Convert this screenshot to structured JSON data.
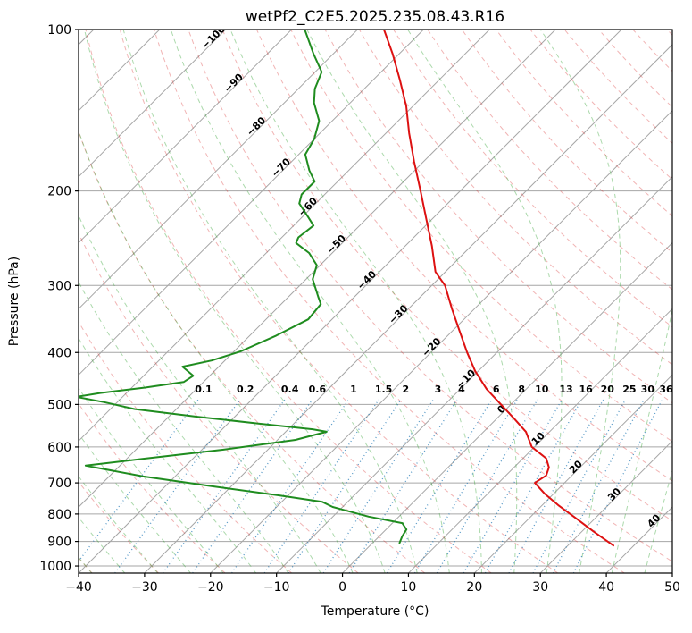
{
  "title": "wetPf2_C2E5.2025.235.08.43.R16",
  "axes": {
    "x_label": "Temperature (°C)",
    "y_label": "Pressure (hPa)"
  },
  "chart_data": {
    "type": "line",
    "subtype": "skew-t-log-p",
    "title": "wetPf2_C2E5.2025.235.08.43.R16",
    "xlabel": "Temperature (°C)",
    "ylabel": "Pressure (hPa)",
    "xlim": [
      -40,
      50
    ],
    "plim": [
      100,
      1031
    ],
    "x_ticks": [
      -40,
      -30,
      -20,
      -10,
      0,
      10,
      20,
      30,
      40,
      50
    ],
    "y_ticks": [
      100,
      200,
      300,
      400,
      500,
      600,
      700,
      800,
      900,
      1000
    ],
    "skew_deg": 45,
    "grid": true,
    "isotherms": {
      "start": -160,
      "end": 50,
      "step": 10,
      "labels": [
        -100,
        -90,
        -80,
        -70,
        -60,
        -50,
        -40,
        -30,
        -20,
        -10,
        0,
        10,
        20,
        30,
        40
      ],
      "label_theta_k": 330
    },
    "dry_adiabats_c": {
      "start": -40,
      "end": 200,
      "step": 10
    },
    "moist_adiabats_c": {
      "start": -40,
      "end": 45,
      "step": 5
    },
    "mixing_ratios": {
      "values_g_kg": [
        0.1,
        0.2,
        0.4,
        0.6,
        1,
        1.5,
        2,
        3,
        4,
        6,
        8,
        10,
        13,
        16,
        20,
        25,
        30,
        36
      ],
      "label_pressure_hpa": 475,
      "top_pressure_hpa": 490
    },
    "series": [
      {
        "name": "temperature",
        "color": "#dd1111",
        "points_T_p": [
          [
            -76,
            100
          ],
          [
            -71,
            111
          ],
          [
            -66,
            124
          ],
          [
            -61,
            139
          ],
          [
            -56.5,
            156
          ],
          [
            -51.5,
            176
          ],
          [
            -46,
            200
          ],
          [
            -41,
            225
          ],
          [
            -36,
            253
          ],
          [
            -31.5,
            283
          ],
          [
            -28,
            300
          ],
          [
            -23.5,
            331
          ],
          [
            -19,
            364
          ],
          [
            -14.5,
            400
          ],
          [
            -10.5,
            433
          ],
          [
            -6,
            468
          ],
          [
            -1.5,
            500
          ],
          [
            2.6,
            531
          ],
          [
            6.4,
            562
          ],
          [
            9.6,
            600
          ],
          [
            13.5,
            630
          ],
          [
            15.3,
            655
          ],
          [
            16.1,
            678
          ],
          [
            15.5,
            700
          ],
          [
            18.6,
            733
          ],
          [
            22.4,
            770
          ],
          [
            27.1,
            815
          ],
          [
            31.8,
            863
          ],
          [
            36.9,
            916
          ]
        ]
      },
      {
        "name": "dewpoint",
        "color": "#1f8c1f",
        "points_T_p": [
          [
            -88,
            100
          ],
          [
            -83,
            111
          ],
          [
            -79,
            120
          ],
          [
            -77.5,
            129
          ],
          [
            -75.5,
            137
          ],
          [
            -72,
            148
          ],
          [
            -70,
            160
          ],
          [
            -69,
            171
          ],
          [
            -66,
            183
          ],
          [
            -63.5,
            192
          ],
          [
            -63.5,
            203
          ],
          [
            -62.5,
            211
          ],
          [
            -59,
            224
          ],
          [
            -57,
            232
          ],
          [
            -57.5,
            244
          ],
          [
            -57,
            250
          ],
          [
            -53.5,
            261
          ],
          [
            -50.5,
            275
          ],
          [
            -49,
            292
          ],
          [
            -45.5,
            315
          ],
          [
            -44,
            325
          ],
          [
            -43.6,
            347
          ],
          [
            -46,
            372
          ],
          [
            -49,
            398
          ],
          [
            -52,
            414
          ],
          [
            -55.5,
            425
          ],
          [
            -52.5,
            442
          ],
          [
            -53,
            454
          ],
          [
            -58,
            465
          ],
          [
            -64,
            476
          ],
          [
            -67,
            484
          ],
          [
            -62,
            495
          ],
          [
            -56.3,
            510
          ],
          [
            -45.7,
            527
          ],
          [
            -35.2,
            543
          ],
          [
            -26.3,
            556
          ],
          [
            -23.8,
            562
          ],
          [
            -27.3,
            582
          ],
          [
            -36.7,
            607
          ],
          [
            -47.5,
            631
          ],
          [
            -55.2,
            650
          ],
          [
            -44.8,
            681
          ],
          [
            -32.5,
            711
          ],
          [
            -21.6,
            738
          ],
          [
            -13.9,
            759
          ],
          [
            -11.5,
            776
          ],
          [
            -4.6,
            809
          ],
          [
            1.5,
            832
          ],
          [
            3.1,
            855
          ],
          [
            3.5,
            881
          ],
          [
            4.1,
            906
          ]
        ]
      }
    ],
    "style_colors": {
      "isotherm": "#a6a6a6",
      "grid": "#a6a6a6",
      "dry_adiabat": "#d62728",
      "moist_adiabat": "#2ca02c",
      "mixing_ratio": "#1f77b4",
      "label_cold": "#1f77b4",
      "label_zero": "#808080",
      "label_warm": "#c0392b",
      "frame": "#000000"
    }
  }
}
